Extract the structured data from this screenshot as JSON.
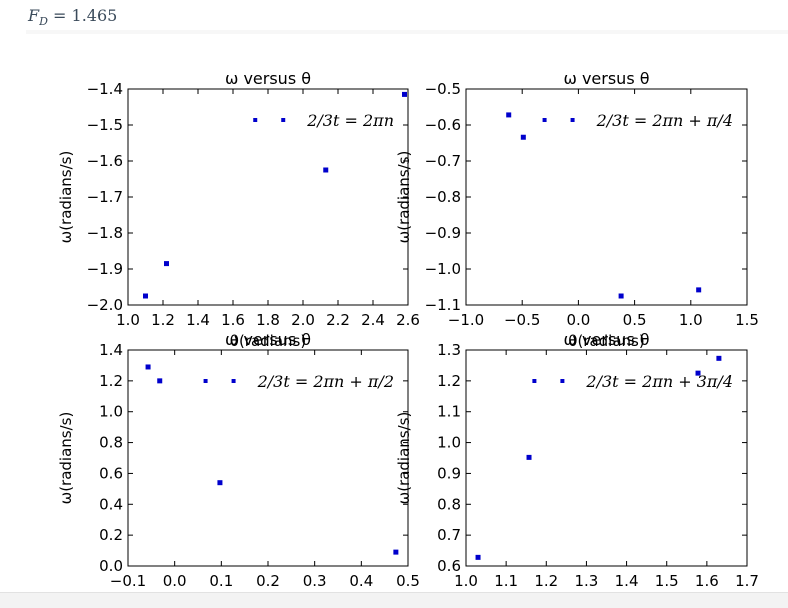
{
  "header": {
    "prefix": "F",
    "subscript": "D",
    "equals": " = ",
    "value": "1.465"
  },
  "colors": {
    "marker": "#0000cc",
    "axis": "#000000",
    "header": "#3a4a5a"
  },
  "chart_data": [
    {
      "type": "scatter",
      "title": "ω versus θ",
      "xlabel": "θ(radians)",
      "ylabel": "ω(radians/s)",
      "xlim": [
        1.0,
        2.6
      ],
      "ylim": [
        -2.0,
        -1.4
      ],
      "xticks": [
        "1.0",
        "1.2",
        "1.4",
        "1.6",
        "1.8",
        "2.0",
        "2.2",
        "2.4",
        "2.6"
      ],
      "yticks": [
        "−2.0",
        "−1.9",
        "−1.8",
        "−1.7",
        "−1.6",
        "−1.5",
        "−1.4"
      ],
      "legend": "2/3t = 2πn",
      "legend_position": "upper right",
      "points": [
        [
          1.1,
          -1.975
        ],
        [
          1.22,
          -1.885
        ],
        [
          2.13,
          -1.625
        ],
        [
          2.58,
          -1.415
        ]
      ]
    },
    {
      "type": "scatter",
      "title": "ω versus θ",
      "xlabel": "θ(radians)",
      "ylabel": "ω(radians/s)",
      "xlim": [
        -1.0,
        1.5
      ],
      "ylim": [
        -1.1,
        -0.5
      ],
      "xticks": [
        "−1.0",
        "−0.5",
        "0.0",
        "0.5",
        "1.0",
        "1.5"
      ],
      "yticks": [
        "−1.1",
        "−1.0",
        "−0.9",
        "−0.8",
        "−0.7",
        "−0.6",
        "−0.5"
      ],
      "legend": "2/3t = 2πn + π/4",
      "legend_position": "upper right",
      "points": [
        [
          -0.62,
          -0.572
        ],
        [
          -0.49,
          -0.634
        ],
        [
          0.38,
          -1.075
        ],
        [
          1.07,
          -1.058
        ]
      ]
    },
    {
      "type": "scatter",
      "title": "ω versus θ",
      "xlabel": "",
      "ylabel": "ω(radians/s)",
      "xlim": [
        -0.1,
        0.5
      ],
      "ylim": [
        0.0,
        1.4
      ],
      "xticks": [
        "−0.1",
        "0.0",
        "0.1",
        "0.2",
        "0.3",
        "0.4",
        "0.5"
      ],
      "yticks": [
        "0.0",
        "0.2",
        "0.4",
        "0.6",
        "0.8",
        "1.0",
        "1.2",
        "1.4"
      ],
      "legend": "2/3t = 2πn + π/2",
      "legend_position": "upper right",
      "points": [
        [
          -0.057,
          1.29
        ],
        [
          -0.032,
          1.2
        ],
        [
          0.097,
          0.54
        ],
        [
          0.474,
          0.09
        ]
      ]
    },
    {
      "type": "scatter",
      "title": "ω versus θ",
      "xlabel": "",
      "ylabel": "ω(radians/s)",
      "xlim": [
        1.0,
        1.7
      ],
      "ylim": [
        0.6,
        1.3
      ],
      "xticks": [
        "1.0",
        "1.1",
        "1.2",
        "1.3",
        "1.4",
        "1.5",
        "1.6",
        "1.7"
      ],
      "yticks": [
        "0.6",
        "0.7",
        "0.8",
        "0.9",
        "1.0",
        "1.1",
        "1.2",
        "1.3"
      ],
      "legend": "2/3t = 2πn + 3π/4",
      "legend_position": "upper right",
      "points": [
        [
          1.03,
          0.628
        ],
        [
          1.157,
          0.952
        ],
        [
          1.578,
          1.225
        ],
        [
          1.63,
          1.273
        ]
      ]
    }
  ]
}
